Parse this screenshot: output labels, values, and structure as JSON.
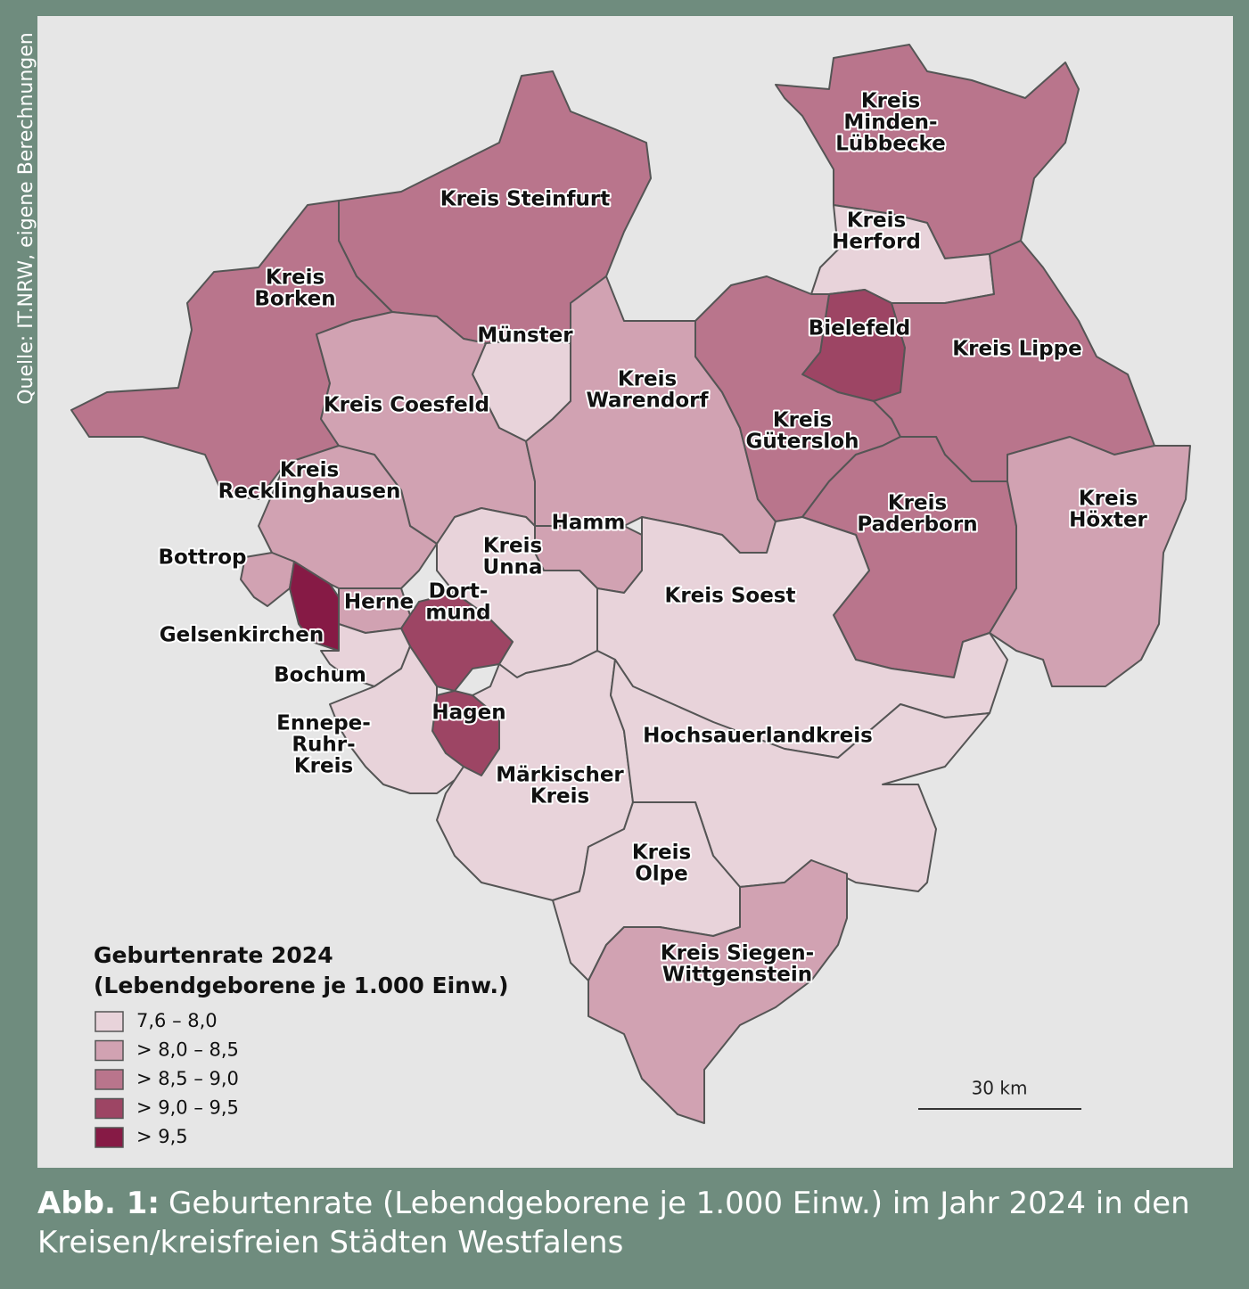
{
  "source": "Quelle: IT.NRW, eigene Berechnungen",
  "legend": {
    "title": [
      "Geburtenrate 2024",
      "(Lebendgeborene je 1.000 Einw.)"
    ],
    "items": [
      {
        "label": "7,6 – 8,0",
        "color": "#e8d3da"
      },
      {
        "label": "> 8,0 – 8,5",
        "color": "#d1a2b2"
      },
      {
        "label": "> 8,5 – 9,0",
        "color": "#b9758c"
      },
      {
        "label": "> 9,0 – 9,5",
        "color": "#9d4564"
      },
      {
        "label": "> 9,5",
        "color": "#861a45"
      }
    ]
  },
  "regions": [
    {
      "lines": [
        "Kreis Steinfurt"
      ],
      "class": 2
    },
    {
      "lines": [
        "Kreis",
        "Borken"
      ],
      "class": 2
    },
    {
      "lines": [
        "Kreis",
        "Minden-",
        "Lübbecke"
      ],
      "class": 2
    },
    {
      "lines": [
        "Kreis",
        "Herford"
      ],
      "class": 0
    },
    {
      "lines": [
        "Münster"
      ],
      "class": 0
    },
    {
      "lines": [
        "Kreis Coesfeld"
      ],
      "class": 1
    },
    {
      "lines": [
        "Kreis",
        "Warendorf"
      ],
      "class": 1
    },
    {
      "lines": [
        "Bielefeld"
      ],
      "class": 3
    },
    {
      "lines": [
        "Kreis",
        "Gütersloh"
      ],
      "class": 2
    },
    {
      "lines": [
        "Kreis Lippe"
      ],
      "class": 2
    },
    {
      "lines": [
        "Kreis",
        "Paderborn"
      ],
      "class": 2
    },
    {
      "lines": [
        "Kreis",
        "Höxter"
      ],
      "class": 1
    },
    {
      "lines": [
        "Kreis",
        "Recklinghausen"
      ],
      "class": 1
    },
    {
      "lines": [
        "Hamm"
      ],
      "class": 1
    },
    {
      "lines": [
        "Kreis",
        "Unna"
      ],
      "class": 0
    },
    {
      "lines": [
        "Kreis Soest"
      ],
      "class": 0
    },
    {
      "lines": [
        "Bottrop"
      ],
      "class": 1
    },
    {
      "lines": [
        "Gelsenkirchen"
      ],
      "class": 4
    },
    {
      "lines": [
        "Herne"
      ],
      "class": 1
    },
    {
      "lines": [
        "Dort-",
        "mund"
      ],
      "class": 3
    },
    {
      "lines": [
        "Bochum"
      ],
      "class": 0
    },
    {
      "lines": [
        "Hagen"
      ],
      "class": 3
    },
    {
      "lines": [
        "Ennepe-",
        "Ruhr-",
        "Kreis"
      ],
      "class": 0
    },
    {
      "lines": [
        "Märkischer",
        "Kreis"
      ],
      "class": 0
    },
    {
      "lines": [
        "Hochsauerlandkreis"
      ],
      "class": 0
    },
    {
      "lines": [
        "Kreis",
        "Olpe"
      ],
      "class": 0
    },
    {
      "lines": [
        "Kreis Siegen-",
        "Wittgenstein"
      ],
      "class": 1
    }
  ],
  "scale": "30 km",
  "caption": {
    "label": "Abb. 1:",
    "text": "Geburtenrate (Lebendgeborene je 1.000 Einw.) im Jahr 2024 in den Kreisen/kreisfreien Städten Westfalens"
  }
}
